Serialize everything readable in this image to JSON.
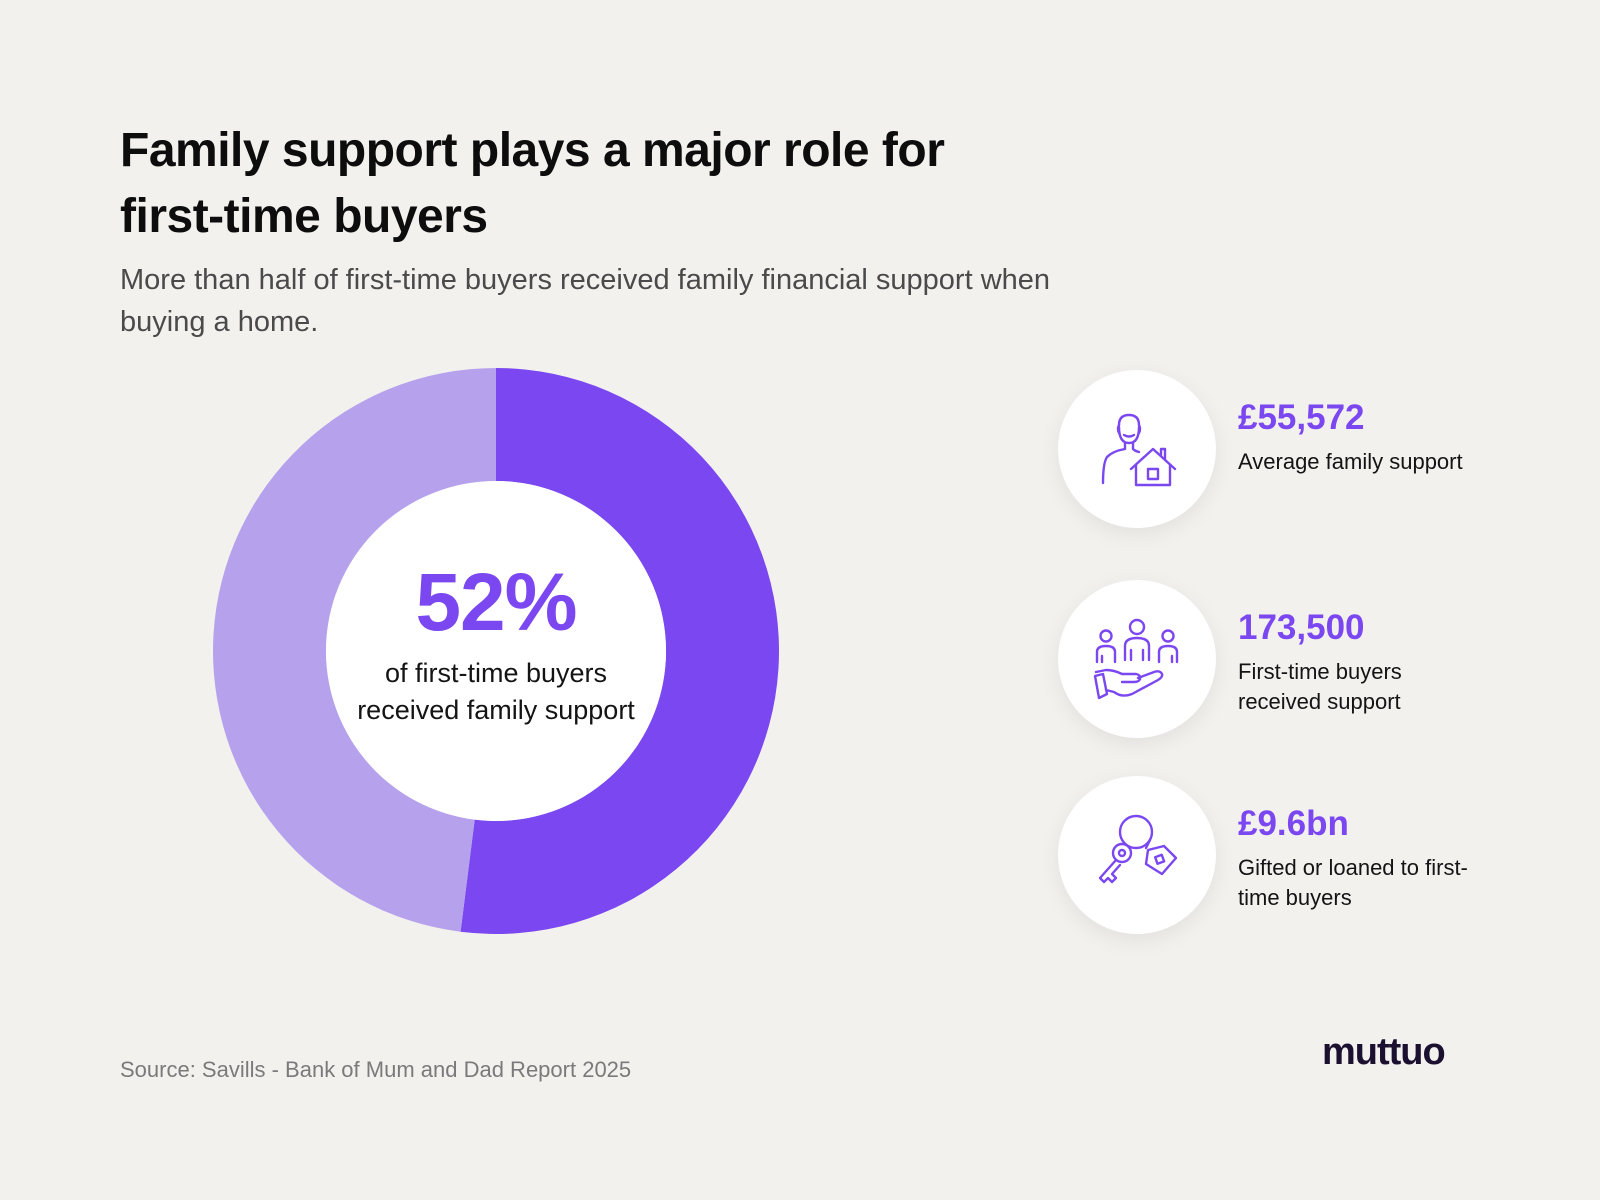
{
  "title": "Family support plays a major role for first-time buyers",
  "subtitle": "More than half of first-time buyers received family financial support when buying a home.",
  "chart_data": {
    "type": "pie",
    "values": [
      52,
      48
    ],
    "center_value": "52%",
    "center_label": "of first-time buyers received family support",
    "colors": [
      "#7b47f0",
      "#b6a2ec"
    ]
  },
  "stats": [
    {
      "value": "£55,572",
      "label": "Average family support",
      "icon": "person-house-icon"
    },
    {
      "value": "173,500",
      "label": "First-time buyers received support",
      "icon": "family-hand-icon"
    },
    {
      "value": "£9.6bn",
      "label": "Gifted or loaned to first-time buyers",
      "icon": "house-key-icon"
    }
  ],
  "source": "Source: Savills - Bank of Mum and Dad Report 2025",
  "logo": "muttuo",
  "colors": {
    "accent": "#7b47f0",
    "accent_light": "#b6a2ec",
    "background": "#f2f1ee",
    "logo": "#1c1030"
  }
}
